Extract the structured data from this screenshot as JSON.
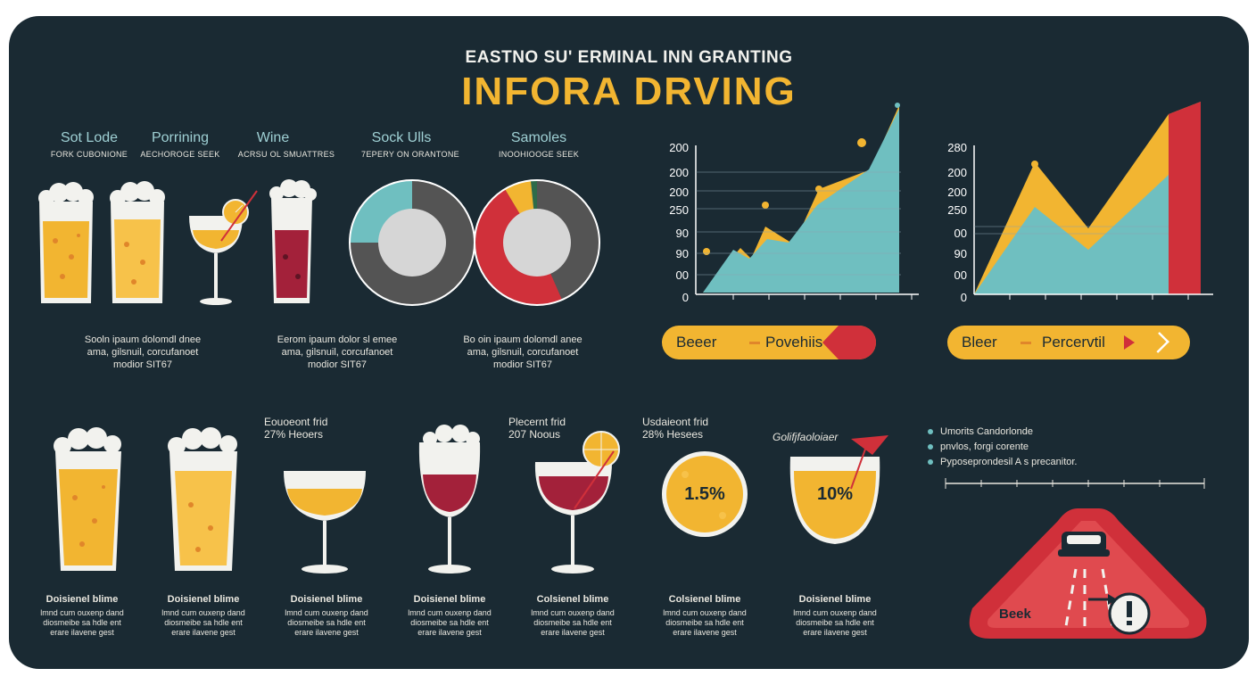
{
  "title": {
    "subtitle": "EASTNO SU' ERMINAL INN GRANTING",
    "main": "INFORA  DRVING"
  },
  "categories": [
    {
      "label": "Sot Lode",
      "sub": "FORK CUBONIONE"
    },
    {
      "label": "Porrining",
      "sub": "AECHOROGE SEEK"
    },
    {
      "label": "Wine",
      "sub": "ACRSU OL SMUATTRES"
    },
    {
      "label": "Sock Ulls",
      "sub": "7EPERY ON ORANTONE"
    },
    {
      "label": "Samoles",
      "sub": "INOOHIOOGE SEEK"
    }
  ],
  "paragraphs": [
    "Sooln ipaum dolomdl dnee\nama, gilsnuil, corcufanoet\nmodior SIT67",
    "Eerom ipaum dolor sl emee\nama, gilsnuil, corcufanoet\nmodior SIT67",
    "Bo oin ipaum dolomdl anee\nama, gilsnuil, corcufanoet\nmodior SIT67"
  ],
  "chart1": {
    "ticks": [
      "200",
      "200",
      "200",
      "250",
      "90",
      "90",
      "00",
      "0"
    ]
  },
  "chart2": {
    "ticks": [
      "280",
      "200",
      "200",
      "250",
      "00",
      "90",
      "00",
      "0"
    ]
  },
  "pill1": {
    "left": "Beeer",
    "right": "Povehiis"
  },
  "pill2": {
    "left": "Bleer",
    "right": "Percervtil"
  },
  "captions": [
    "Eouoeont frid\n27% Heoers",
    "Plecernt frid\n207 Noous",
    "Usdaieont frid\n28% Hesees"
  ],
  "glass_labels": {
    "beer": "1.5%",
    "cocktail": "10%",
    "cocktail_caption": "Golifjfaoloiaer"
  },
  "bullets": [
    "Umorits Candorlonde",
    "pnvlos, forgi corente",
    "Pyposeprondesil A s precanitor."
  ],
  "warning": {
    "label": "Beek"
  },
  "bottom_items": [
    {
      "title": "Doisienel blime",
      "body": "lmnd cum ouxenp dand\ndiosmeibe sa hdle ent\nerare ilavene gest"
    },
    {
      "title": "Doisienel blime",
      "body": "lmnd cum ouxenp dand\ndiosmeibe sa hdle ent\nerare ilavene gest"
    },
    {
      "title": "Doisienel blime",
      "body": "lmnd cum ouxenp dand\ndiosmeibe sa hdle ent\nerare ilavene gest"
    },
    {
      "title": "Doisienel blime",
      "body": "lmnd cum ouxenp dand\ndiosmeibe sa hdle ent\nerare ilavene gest"
    },
    {
      "title": "Colsienel blime",
      "body": "lmnd cum ouxenp dand\ndiosmeibe sa hdle ent\nerare ilavene gest"
    },
    {
      "title": "Colsienel blime",
      "body": "lmnd cum ouxenp dand\ndiosmeibe sa hdle ent\nerare ilavene gest"
    },
    {
      "title": "Doisienel blime",
      "body": "lmnd cum ouxenp dand\ndiosmeibe sa hdle ent\nerare ilavene gest"
    }
  ],
  "colors": {
    "background": "#1a2a33",
    "amber": "#f2b531",
    "teal": "#6fbfc0",
    "red": "#d0303a",
    "wine": "#a3213a",
    "cream": "#f2f2ee"
  }
}
